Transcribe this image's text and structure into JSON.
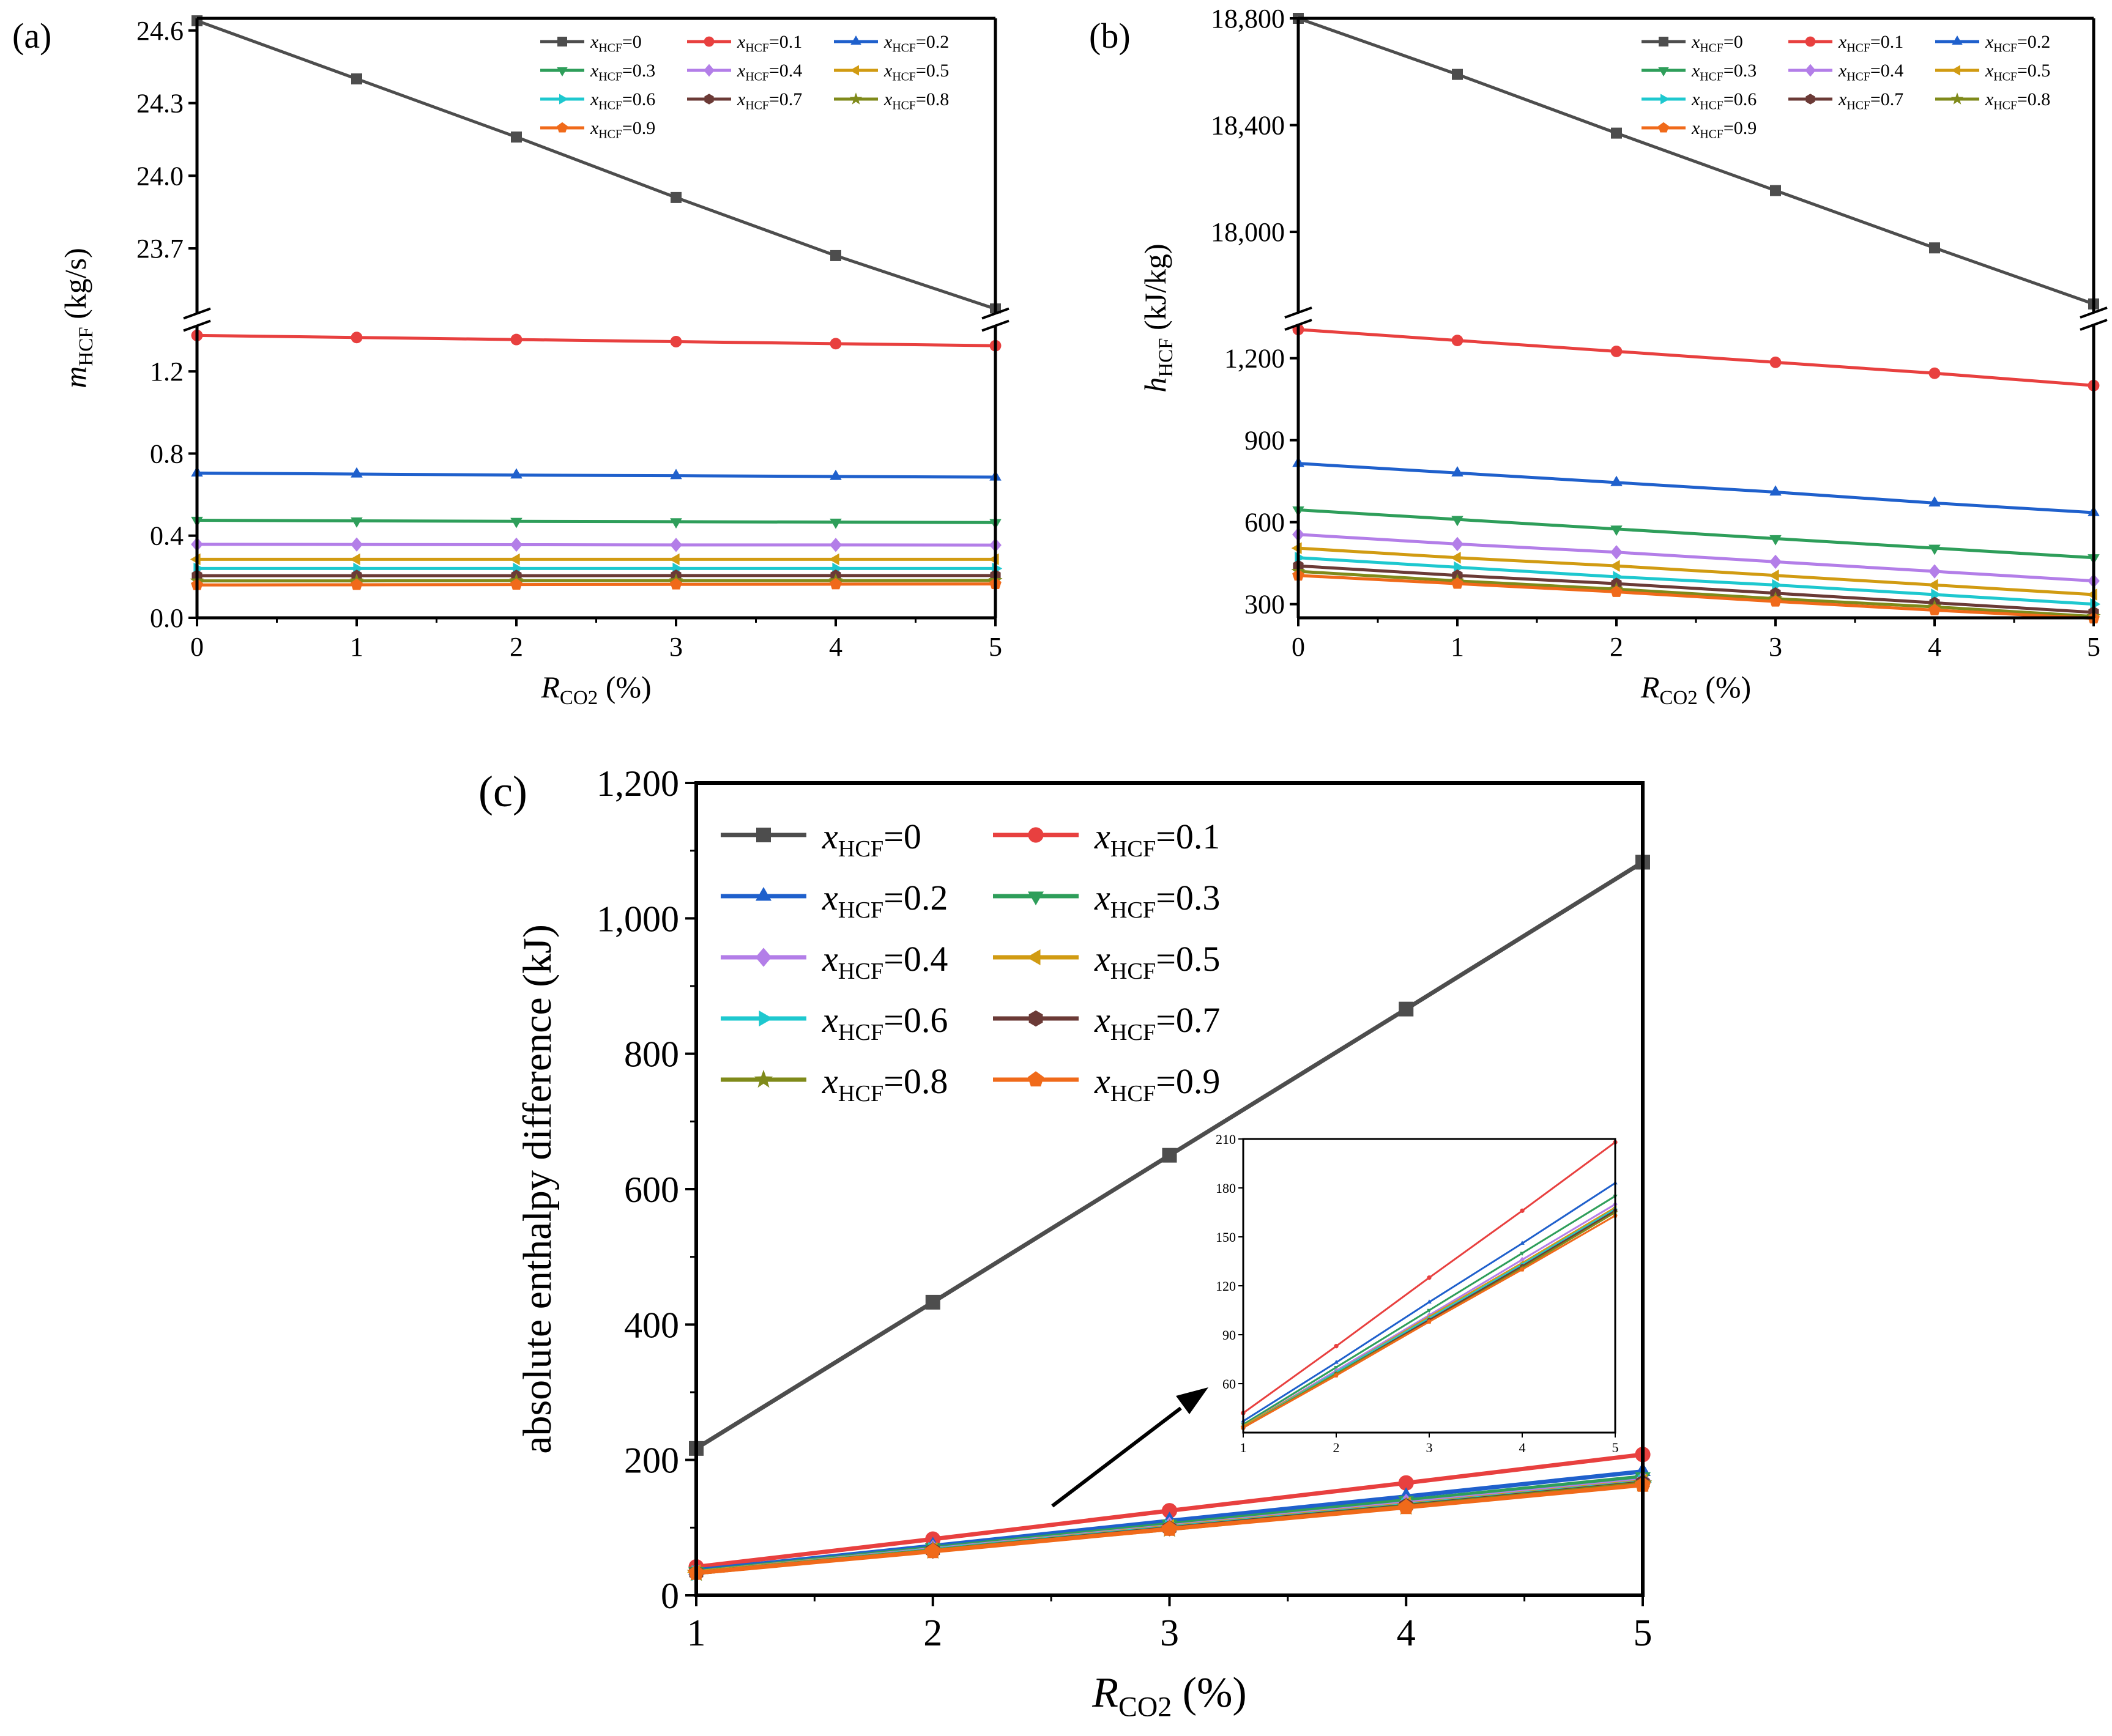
{
  "figure": {
    "panel_labels": [
      "(a)",
      "(b)",
      "(c)"
    ]
  },
  "colors": {
    "0": "#4d4d4d",
    "0.1": "#e8403f",
    "0.2": "#1f60cc",
    "0.3": "#2e9e5a",
    "0.4": "#b37ee8",
    "0.5": "#d19b12",
    "0.6": "#1ec8cf",
    "0.7": "#6b3a36",
    "0.8": "#7f8a1a",
    "0.9": "#f06a1a"
  },
  "chart_data": [
    {
      "id": "a",
      "type": "line",
      "panel_label": "(a)",
      "xlabel": "R",
      "xlabel_sub": "CO2",
      "xlabel_unit": " (%)",
      "ylabel": "m",
      "ylabel_sub": "HCF",
      "ylabel_unit": " (kg/s)",
      "x": [
        0,
        1,
        2,
        3,
        4,
        5
      ],
      "xlim": [
        0,
        5
      ],
      "x_ticks": [
        "0",
        "1",
        "2",
        "3",
        "4",
        "5"
      ],
      "broken_axis": true,
      "upper_ylim": [
        23.45,
        24.65
      ],
      "upper_ticks": [
        {
          "v": 24.6,
          "label": "24.6"
        },
        {
          "v": 24.3,
          "label": "24.3"
        },
        {
          "v": 24.0,
          "label": "24.0"
        },
        {
          "v": 23.7,
          "label": "23.7"
        }
      ],
      "lower_ylim": [
        0,
        1.4
      ],
      "lower_ticks": [
        {
          "v": 0,
          "label": "0.0"
        },
        {
          "v": 0.4,
          "label": "0.4"
        },
        {
          "v": 0.8,
          "label": "0.8"
        },
        {
          "v": 1.2,
          "label": "1.2"
        }
      ],
      "legend_position": "top-right",
      "series": [
        {
          "name": "x",
          "sub": "HCF",
          "suffix": "=0",
          "key": "0",
          "marker": "square",
          "values": [
            24.64,
            24.4,
            24.16,
            23.91,
            23.67,
            23.45
          ]
        },
        {
          "name": "x",
          "sub": "HCF",
          "suffix": "=0.1",
          "key": "0.1",
          "marker": "circle",
          "values": [
            1.375,
            1.365,
            1.355,
            1.345,
            1.335,
            1.325
          ]
        },
        {
          "name": "x",
          "sub": "HCF",
          "suffix": "=0.2",
          "key": "0.2",
          "marker": "triangle-up",
          "values": [
            0.705,
            0.7,
            0.695,
            0.692,
            0.688,
            0.685
          ]
        },
        {
          "name": "x",
          "sub": "HCF",
          "suffix": "=0.3",
          "key": "0.3",
          "marker": "triangle-down",
          "values": [
            0.475,
            0.472,
            0.47,
            0.468,
            0.466,
            0.464
          ]
        },
        {
          "name": "x",
          "sub": "HCF",
          "suffix": "=0.4",
          "key": "0.4",
          "marker": "diamond",
          "values": [
            0.358,
            0.357,
            0.356,
            0.355,
            0.355,
            0.354
          ]
        },
        {
          "name": "x",
          "sub": "HCF",
          "suffix": "=0.5",
          "key": "0.5",
          "marker": "triangle-left",
          "values": [
            0.285,
            0.285,
            0.285,
            0.285,
            0.285,
            0.285
          ]
        },
        {
          "name": "x",
          "sub": "HCF",
          "suffix": "=0.6",
          "key": "0.6",
          "marker": "triangle-right",
          "values": [
            0.24,
            0.24,
            0.24,
            0.24,
            0.24,
            0.24
          ]
        },
        {
          "name": "x",
          "sub": "HCF",
          "suffix": "=0.7",
          "key": "0.7",
          "marker": "hexagon",
          "values": [
            0.205,
            0.205,
            0.205,
            0.206,
            0.206,
            0.206
          ]
        },
        {
          "name": "x",
          "sub": "HCF",
          "suffix": "=0.8",
          "key": "0.8",
          "marker": "star",
          "values": [
            0.18,
            0.18,
            0.181,
            0.181,
            0.181,
            0.182
          ]
        },
        {
          "name": "x",
          "sub": "HCF",
          "suffix": "=0.9",
          "key": "0.9",
          "marker": "pentagon",
          "values": [
            0.16,
            0.161,
            0.162,
            0.163,
            0.164,
            0.165
          ]
        }
      ]
    },
    {
      "id": "b",
      "type": "line",
      "panel_label": "(b)",
      "xlabel": "R",
      "xlabel_sub": "CO2",
      "xlabel_unit": " (%)",
      "ylabel": "h",
      "ylabel_sub": "HCF",
      "ylabel_unit": " (kJ/kg)",
      "x": [
        0,
        1,
        2,
        3,
        4,
        5
      ],
      "xlim": [
        0,
        5
      ],
      "x_ticks": [
        "0",
        "1",
        "2",
        "3",
        "4",
        "5"
      ],
      "broken_axis": true,
      "upper_ylim": [
        17700,
        18800
      ],
      "upper_ticks": [
        {
          "v": 18800,
          "label": "18,800"
        },
        {
          "v": 18400,
          "label": "18,400"
        },
        {
          "v": 18000,
          "label": "18,000"
        }
      ],
      "lower_ylim": [
        250,
        1320
      ],
      "lower_ticks": [
        {
          "v": 300,
          "label": "300"
        },
        {
          "v": 600,
          "label": "600"
        },
        {
          "v": 900,
          "label": "900"
        },
        {
          "v": 1200,
          "label": "1,200"
        }
      ],
      "legend_position": "top-right",
      "series": [
        {
          "name": "x",
          "sub": "HCF",
          "suffix": "=0",
          "key": "0",
          "marker": "square",
          "values": [
            18800,
            18590,
            18370,
            18155,
            17940,
            17730
          ]
        },
        {
          "name": "x",
          "sub": "HCF",
          "suffix": "=0.1",
          "key": "0.1",
          "marker": "circle",
          "values": [
            1305,
            1265,
            1225,
            1185,
            1145,
            1100
          ]
        },
        {
          "name": "x",
          "sub": "HCF",
          "suffix": "=0.2",
          "key": "0.2",
          "marker": "triangle-up",
          "values": [
            815,
            780,
            745,
            710,
            670,
            635
          ]
        },
        {
          "name": "x",
          "sub": "HCF",
          "suffix": "=0.3",
          "key": "0.3",
          "marker": "triangle-down",
          "values": [
            645,
            610,
            575,
            540,
            505,
            470
          ]
        },
        {
          "name": "x",
          "sub": "HCF",
          "suffix": "=0.4",
          "key": "0.4",
          "marker": "diamond",
          "values": [
            555,
            520,
            490,
            455,
            420,
            385
          ]
        },
        {
          "name": "x",
          "sub": "HCF",
          "suffix": "=0.5",
          "key": "0.5",
          "marker": "triangle-left",
          "values": [
            505,
            470,
            440,
            405,
            370,
            335
          ]
        },
        {
          "name": "x",
          "sub": "HCF",
          "suffix": "=0.6",
          "key": "0.6",
          "marker": "triangle-right",
          "values": [
            470,
            435,
            400,
            370,
            335,
            300
          ]
        },
        {
          "name": "x",
          "sub": "HCF",
          "suffix": "=0.7",
          "key": "0.7",
          "marker": "hexagon",
          "values": [
            440,
            405,
            375,
            340,
            305,
            270
          ]
        },
        {
          "name": "x",
          "sub": "HCF",
          "suffix": "=0.8",
          "key": "0.8",
          "marker": "star",
          "values": [
            420,
            385,
            355,
            320,
            290,
            255
          ]
        },
        {
          "name": "x",
          "sub": "HCF",
          "suffix": "=0.9",
          "key": "0.9",
          "marker": "pentagon",
          "values": [
            405,
            375,
            345,
            310,
            278,
            248
          ]
        }
      ]
    },
    {
      "id": "c",
      "type": "line",
      "panel_label": "(c)",
      "xlabel": "R",
      "xlabel_sub": "CO2",
      "xlabel_unit": " (%)",
      "ylabel": "absolute enthalpy difference (kJ)",
      "x": [
        1,
        2,
        3,
        4,
        5
      ],
      "xlim": [
        1,
        5
      ],
      "x_ticks": [
        "1",
        "2",
        "3",
        "4",
        "5"
      ],
      "ylim": [
        0,
        1200
      ],
      "y_ticks": [
        {
          "v": 0,
          "label": "0"
        },
        {
          "v": 200,
          "label": "200"
        },
        {
          "v": 400,
          "label": "400"
        },
        {
          "v": 600,
          "label": "600"
        },
        {
          "v": 800,
          "label": "800"
        },
        {
          "v": 1000,
          "label": "1,000"
        },
        {
          "v": 1200,
          "label": "1,200"
        }
      ],
      "legend_position": "top-left",
      "series": [
        {
          "name": "x",
          "sub": "HCF",
          "suffix": "=0",
          "key": "0",
          "marker": "square",
          "values": [
            217,
            433,
            650,
            866,
            1083
          ]
        },
        {
          "name": "x",
          "sub": "HCF",
          "suffix": "=0.1",
          "key": "0.1",
          "marker": "circle",
          "values": [
            42,
            83,
            125,
            166,
            208
          ]
        },
        {
          "name": "x",
          "sub": "HCF",
          "suffix": "=0.2",
          "key": "0.2",
          "marker": "triangle-up",
          "values": [
            37,
            73,
            110,
            146,
            183
          ]
        },
        {
          "name": "x",
          "sub": "HCF",
          "suffix": "=0.3",
          "key": "0.3",
          "marker": "triangle-down",
          "values": [
            35,
            70,
            105,
            140,
            175
          ]
        },
        {
          "name": "x",
          "sub": "HCF",
          "suffix": "=0.4",
          "key": "0.4",
          "marker": "diamond",
          "values": [
            34,
            68,
            102,
            136,
            170
          ]
        },
        {
          "name": "x",
          "sub": "HCF",
          "suffix": "=0.5",
          "key": "0.5",
          "marker": "triangle-left",
          "values": [
            34,
            67,
            101,
            134,
            168
          ]
        },
        {
          "name": "x",
          "sub": "HCF",
          "suffix": "=0.6",
          "key": "0.6",
          "marker": "triangle-right",
          "values": [
            33,
            67,
            100,
            133,
            167
          ]
        },
        {
          "name": "x",
          "sub": "HCF",
          "suffix": "=0.7",
          "key": "0.7",
          "marker": "hexagon",
          "values": [
            33,
            66,
            99,
            132,
            166
          ]
        },
        {
          "name": "x",
          "sub": "HCF",
          "suffix": "=0.8",
          "key": "0.8",
          "marker": "star",
          "values": [
            33,
            66,
            98,
            131,
            165
          ]
        },
        {
          "name": "x",
          "sub": "HCF",
          "suffix": "=0.9",
          "key": "0.9",
          "marker": "pentagon",
          "values": [
            33,
            65,
            98,
            130,
            163
          ]
        }
      ],
      "inset": {
        "xlim": [
          1,
          5
        ],
        "ylim": [
          30,
          210
        ],
        "x_ticks": [
          "1",
          "2",
          "3",
          "4",
          "5"
        ],
        "y_ticks": [
          {
            "v": 60,
            "label": "60"
          },
          {
            "v": 90,
            "label": "90"
          },
          {
            "v": 120,
            "label": "120"
          },
          {
            "v": 150,
            "label": "150"
          },
          {
            "v": 180,
            "label": "180"
          },
          {
            "v": 210,
            "label": "210"
          }
        ],
        "series_keys": [
          "0.1",
          "0.2",
          "0.3",
          "0.4",
          "0.5",
          "0.6",
          "0.7",
          "0.8",
          "0.9"
        ]
      }
    }
  ]
}
